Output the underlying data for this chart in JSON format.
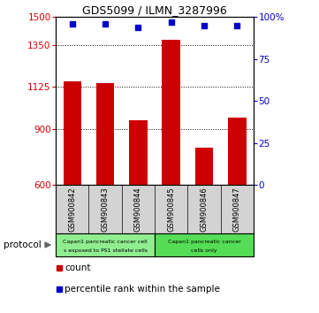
{
  "title": "GDS5099 / ILMN_3287996",
  "samples": [
    "GSM900842",
    "GSM900843",
    "GSM900844",
    "GSM900845",
    "GSM900846",
    "GSM900847"
  ],
  "counts": [
    1155,
    1145,
    945,
    1380,
    800,
    960
  ],
  "percentiles": [
    96,
    96,
    94,
    97,
    95,
    95
  ],
  "ylim_left": [
    600,
    1500
  ],
  "ylim_right": [
    0,
    100
  ],
  "yticks_left": [
    600,
    900,
    1125,
    1350,
    1500
  ],
  "yticks_right": [
    0,
    25,
    50,
    75,
    100
  ],
  "bar_color": "#cc0000",
  "marker_color": "#0000cc",
  "group1_label_line1": "Capan1 pancreatic cancer cell",
  "group1_label_line2": "s exposed to PS1 stellate cells",
  "group2_label_line1": "Capan1 pancreatic cancer",
  "group2_label_line2": "cells only",
  "group1_color": "#90ee90",
  "group2_color": "#55dd55",
  "protocol_label": "protocol",
  "legend_count_label": "count",
  "legend_percentile_label": "percentile rank within the sample",
  "bar_color_legend": "#cc0000",
  "marker_color_legend": "#0000cc",
  "tick_color_left": "#cc0000",
  "tick_color_right": "#0000cc",
  "sample_bg_color": "#d3d3d3",
  "grid_linestyle": "dotted"
}
